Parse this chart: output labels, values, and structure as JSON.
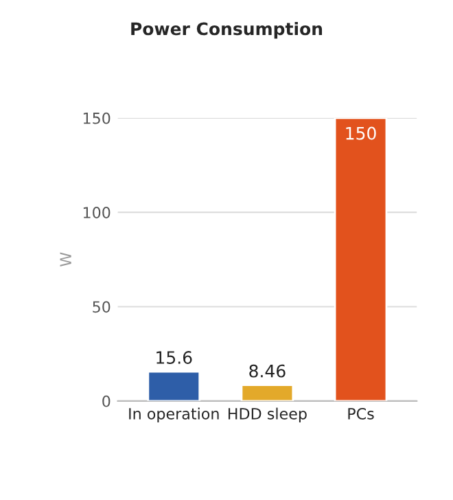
{
  "chart_data": {
    "type": "bar",
    "title": "Power Consumption",
    "ylabel": "W",
    "categories": [
      "In operation",
      "HDD sleep",
      "PCs"
    ],
    "values": [
      15.6,
      8.46,
      150
    ],
    "colors": [
      "#2e5ea8",
      "#e3a92a",
      "#e2521d"
    ],
    "ylim": [
      0,
      150
    ],
    "yticks": [
      0,
      50,
      100,
      150
    ],
    "grid": "y",
    "data_labels": true,
    "legend": false
  }
}
